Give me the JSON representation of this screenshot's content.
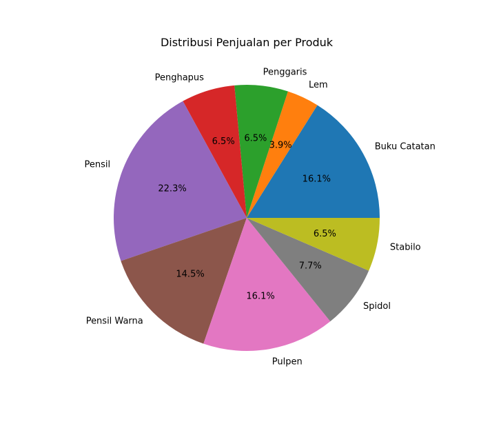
{
  "chart_data": {
    "type": "pie",
    "title": "Distribusi Penjualan per Produk",
    "start_angle_deg": 0,
    "direction": "counterclockwise",
    "slices": [
      {
        "label": "Buku Catatan",
        "value": 16.1,
        "pct_text": "16.1%",
        "color": "#1f77b4"
      },
      {
        "label": "Lem",
        "value": 3.9,
        "pct_text": "3.9%",
        "color": "#ff7f0e"
      },
      {
        "label": "Penggaris",
        "value": 6.5,
        "pct_text": "6.5%",
        "color": "#2ca02c"
      },
      {
        "label": "Penghapus",
        "value": 6.5,
        "pct_text": "6.5%",
        "color": "#d62728"
      },
      {
        "label": "Pensil",
        "value": 22.3,
        "pct_text": "22.3%",
        "color": "#9467bd"
      },
      {
        "label": "Pensil Warna",
        "value": 14.5,
        "pct_text": "14.5%",
        "color": "#8c564b"
      },
      {
        "label": "Pulpen",
        "value": 16.1,
        "pct_text": "16.1%",
        "color": "#e377c2"
      },
      {
        "label": "Spidol",
        "value": 7.7,
        "pct_text": "7.7%",
        "color": "#7f7f7f"
      },
      {
        "label": "Stabilo",
        "value": 6.5,
        "pct_text": "6.5%",
        "color": "#bcbd22"
      }
    ]
  }
}
